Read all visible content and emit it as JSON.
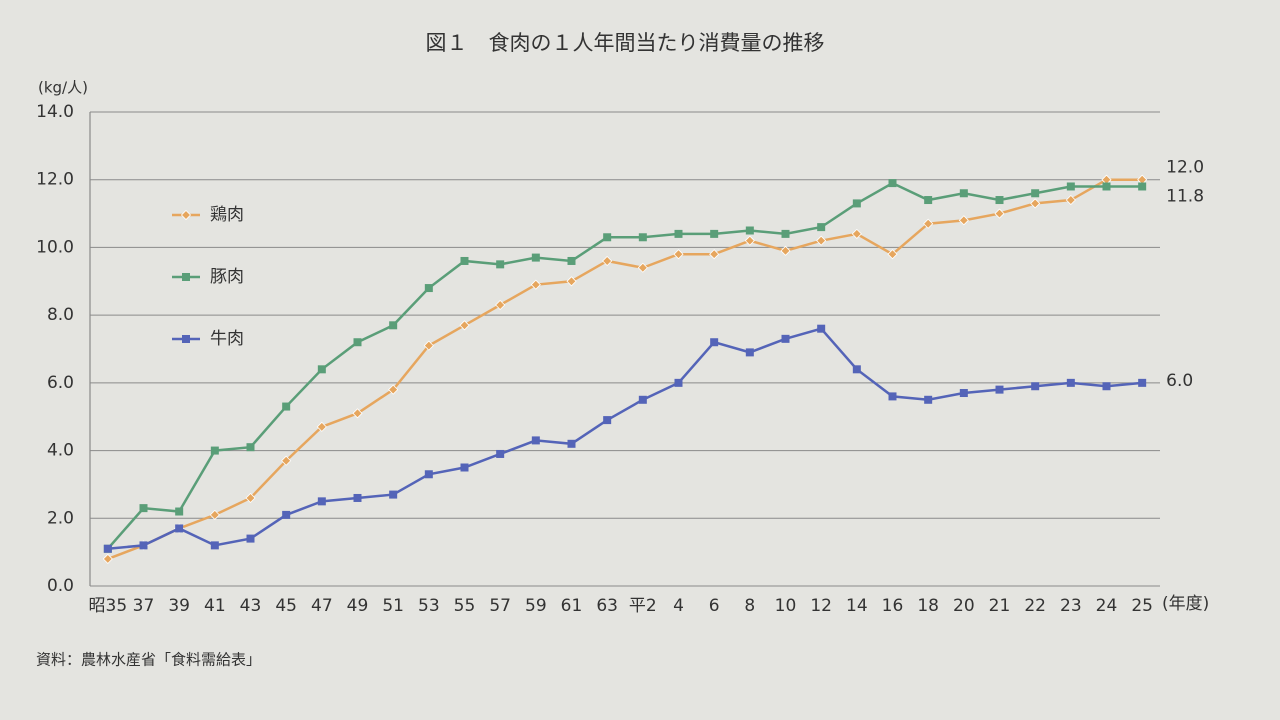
{
  "chart_data": {
    "type": "line",
    "title": "図１　食肉の１人年間当たり消費量の推移",
    "y_label": "(kg/人)",
    "x_label": "(年度)",
    "source": "資料：農林水産省「食料需給表」",
    "categories": [
      "昭35",
      "37",
      "39",
      "41",
      "43",
      "45",
      "47",
      "49",
      "51",
      "53",
      "55",
      "57",
      "59",
      "61",
      "63",
      "平2",
      "4",
      "6",
      "8",
      "10",
      "12",
      "14",
      "16",
      "18",
      "20",
      "21",
      "22",
      "23",
      "24",
      "25"
    ],
    "series": [
      {
        "name": "鶏肉",
        "color": "#e6a65e",
        "marker": "diamond",
        "values": [
          0.8,
          1.2,
          1.7,
          2.1,
          2.6,
          3.7,
          4.7,
          5.1,
          5.8,
          7.1,
          7.7,
          8.3,
          8.9,
          9.0,
          9.6,
          9.4,
          9.8,
          9.8,
          10.2,
          9.9,
          10.2,
          10.4,
          9.8,
          10.7,
          10.8,
          11.0,
          11.3,
          11.4,
          12.0,
          12.0
        ],
        "value_labels": [
          null,
          null,
          null,
          null,
          null,
          null,
          null,
          null,
          null,
          null,
          null,
          null,
          null,
          null,
          null,
          null,
          null,
          null,
          null,
          null,
          null,
          null,
          null,
          null,
          null,
          null,
          null,
          null,
          null,
          "12.0"
        ]
      },
      {
        "name": "豚肉",
        "color": "#5a9e78",
        "marker": "square",
        "values": [
          1.1,
          2.3,
          2.2,
          4.0,
          4.1,
          5.3,
          6.4,
          7.2,
          7.7,
          8.8,
          9.6,
          9.5,
          9.7,
          9.6,
          10.3,
          10.3,
          10.4,
          10.4,
          10.5,
          10.4,
          10.6,
          11.3,
          11.9,
          11.4,
          11.6,
          11.4,
          11.6,
          11.8,
          11.8,
          11.8
        ],
        "value_labels": [
          null,
          null,
          null,
          null,
          null,
          null,
          null,
          null,
          null,
          null,
          null,
          null,
          null,
          null,
          null,
          null,
          null,
          null,
          null,
          null,
          null,
          null,
          null,
          null,
          null,
          null,
          null,
          null,
          null,
          "11.8"
        ]
      },
      {
        "name": "牛肉",
        "color": "#5464b8",
        "marker": "square",
        "values": [
          1.1,
          1.2,
          1.7,
          1.2,
          1.4,
          2.1,
          2.5,
          2.6,
          2.7,
          3.3,
          3.5,
          3.9,
          4.3,
          4.2,
          4.9,
          5.5,
          6.0,
          7.2,
          6.9,
          7.3,
          7.6,
          6.4,
          5.6,
          5.5,
          5.7,
          5.8,
          5.9,
          6.0,
          5.9,
          6.0
        ],
        "value_labels": [
          null,
          null,
          null,
          null,
          null,
          null,
          null,
          null,
          null,
          null,
          null,
          null,
          null,
          null,
          null,
          null,
          null,
          null,
          null,
          null,
          null,
          null,
          null,
          null,
          null,
          null,
          null,
          null,
          null,
          "6.0"
        ]
      }
    ],
    "ylim": [
      0,
      14
    ],
    "yticks": [
      {
        "value": 0,
        "label": "0.0"
      },
      {
        "value": 2,
        "label": "2.0"
      },
      {
        "value": 4,
        "label": "4.0"
      },
      {
        "value": 6,
        "label": "6.0"
      },
      {
        "value": 8,
        "label": "8.0"
      },
      {
        "value": 10,
        "label": "10.0"
      },
      {
        "value": 12,
        "label": "12.0"
      },
      {
        "value": 14,
        "label": "14.0"
      }
    ],
    "grid": true,
    "legend": "left"
  }
}
